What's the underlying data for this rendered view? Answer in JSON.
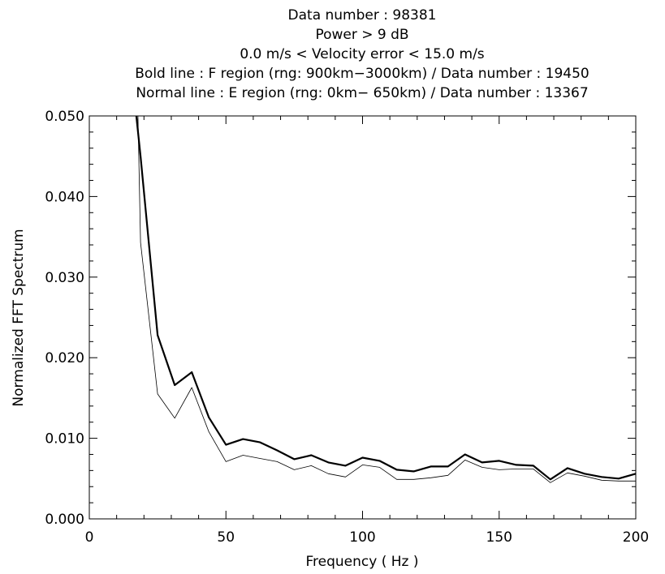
{
  "chart_data": {
    "type": "line",
    "title_lines": [
      "Data number : 98381",
      "Power >  9 dB",
      "0.0 m/s < Velocity error <  15.0 m/s",
      "Bold line : F region (rng:  900km−3000km) / Data number : 19450",
      "Normal line : E region (rng:    0km− 650km) / Data number : 13367"
    ],
    "xlabel": "Frequency ( Hz )",
    "ylabel": "Normalized FFT Spectrum",
    "xlim": [
      0,
      200
    ],
    "ylim": [
      0,
      0.05
    ],
    "xticks": [
      0,
      50,
      100,
      150,
      200
    ],
    "xtick_labels": [
      "0",
      "50",
      "100",
      "150",
      "200"
    ],
    "yticks": [
      0,
      0.01,
      0.02,
      0.03,
      0.04,
      0.05
    ],
    "ytick_labels": [
      "0.000",
      "0.010",
      "0.020",
      "0.030",
      "0.040",
      "0.050"
    ],
    "grid": false,
    "colors": {
      "line": "#000000",
      "axes": "#000000",
      "background": "#ffffff"
    },
    "series": [
      {
        "style": "bold",
        "x": [
          17.2,
          18.75,
          25,
          31.25,
          37.5,
          43.75,
          50,
          56.25,
          62.5,
          68.75,
          75,
          81.25,
          87.5,
          93.75,
          100,
          106.25,
          112.5,
          118.75,
          125,
          131.25,
          137.5,
          143.75,
          150,
          156.25,
          162.5,
          168.75,
          175,
          181.25,
          187.5,
          193.75,
          200
        ],
        "y": [
          0.05,
          0.045,
          0.0228,
          0.0166,
          0.0182,
          0.0126,
          0.0092,
          0.0099,
          0.0095,
          0.0085,
          0.0074,
          0.0079,
          0.007,
          0.0066,
          0.0076,
          0.0072,
          0.0061,
          0.0059,
          0.0065,
          0.0065,
          0.008,
          0.007,
          0.0072,
          0.0067,
          0.0066,
          0.0049,
          0.0063,
          0.0056,
          0.0052,
          0.005,
          0.0056
        ]
      },
      {
        "style": "normal",
        "x": [
          17.8,
          18.75,
          25,
          31.25,
          37.5,
          43.75,
          50,
          56.25,
          62.5,
          68.75,
          75,
          81.25,
          87.5,
          93.75,
          100,
          106.25,
          112.5,
          118.75,
          125,
          131.25,
          137.5,
          143.75,
          150,
          156.25,
          162.5,
          168.75,
          175,
          181.25,
          187.5,
          193.75,
          200
        ],
        "y": [
          0.05,
          0.0343,
          0.0155,
          0.0125,
          0.0163,
          0.0108,
          0.0071,
          0.0079,
          0.0075,
          0.0071,
          0.0061,
          0.0066,
          0.0056,
          0.0052,
          0.0067,
          0.0064,
          0.0049,
          0.0049,
          0.0051,
          0.0054,
          0.0073,
          0.0064,
          0.0061,
          0.0062,
          0.0062,
          0.0045,
          0.0057,
          0.0053,
          0.0048,
          0.0047,
          0.0047
        ]
      }
    ]
  }
}
